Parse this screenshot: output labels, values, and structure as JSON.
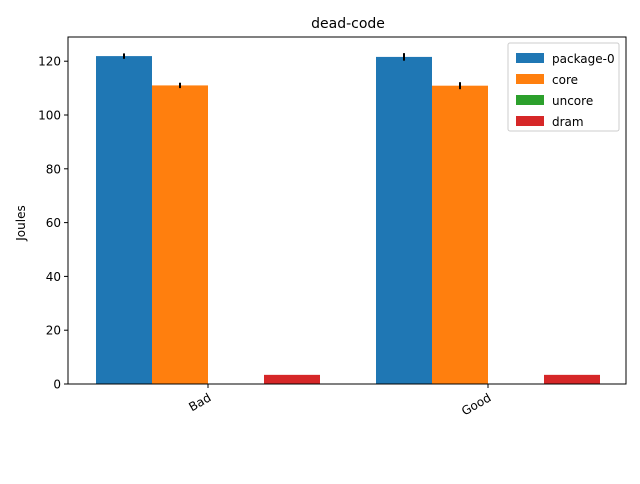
{
  "chart_data": {
    "type": "bar",
    "title": "dead-code",
    "xlabel": "",
    "ylabel": "Joules",
    "categories": [
      "Bad",
      "Good"
    ],
    "series": [
      {
        "name": "package-0",
        "values": [
          121.9,
          121.6
        ],
        "errors": [
          1.0,
          1.4
        ],
        "color": "#1f77b4"
      },
      {
        "name": "core",
        "values": [
          111.0,
          110.9
        ],
        "errors": [
          1.0,
          1.3
        ],
        "color": "#ff7f0e"
      },
      {
        "name": "uncore",
        "values": [
          0.0,
          0.0
        ],
        "errors": [
          0,
          0
        ],
        "color": "#2ca02c"
      },
      {
        "name": "dram",
        "values": [
          3.4,
          3.4
        ],
        "errors": [
          0,
          0
        ],
        "color": "#d62728"
      }
    ],
    "ylim": [
      0,
      129
    ],
    "yticks": [
      0,
      20,
      40,
      60,
      80,
      100,
      120
    ],
    "legend_position": "top-right",
    "grid": false
  }
}
